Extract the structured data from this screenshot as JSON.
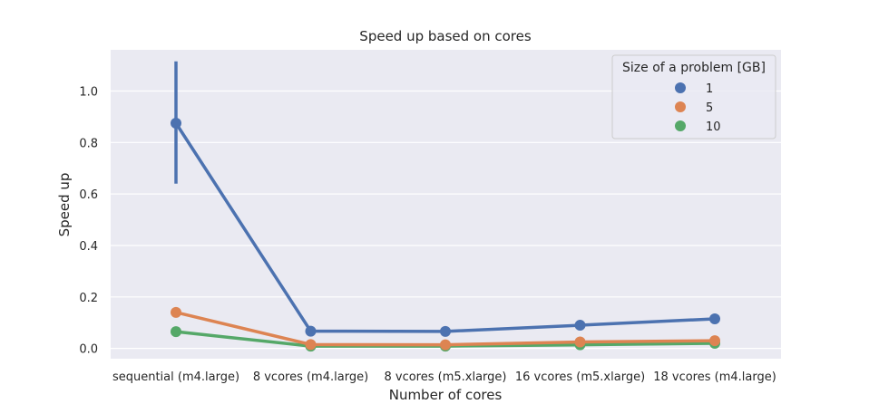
{
  "chart_data": {
    "type": "line",
    "title": "Speed up based on cores",
    "xlabel": "Number of cores",
    "ylabel": "Speed up",
    "categories": [
      "sequential (m4.large)",
      "8 vcores (m4.large)",
      "8 vcores (m5.xlarge)",
      "16 vcores (m5.xlarge)",
      "18 vcores (m4.large)"
    ],
    "ylim": [
      -0.04,
      1.16
    ],
    "yticks": [
      0.0,
      0.2,
      0.4,
      0.6,
      0.8,
      1.0
    ],
    "ytick_labels": [
      "0.0",
      "0.2",
      "0.4",
      "0.6",
      "0.8",
      "1.0"
    ],
    "grid": true,
    "legend": {
      "title": "Size of a problem [GB]",
      "placement": "top-right"
    },
    "series": [
      {
        "name": "1",
        "color": "#4c72b0",
        "values": [
          0.875,
          0.067,
          0.066,
          0.09,
          0.115
        ],
        "error_bars": [
          [
            0.64,
            1.115
          ],
          null,
          null,
          null,
          null
        ]
      },
      {
        "name": "5",
        "color": "#dd8452",
        "values": [
          0.14,
          0.015,
          0.014,
          0.025,
          0.03
        ],
        "error_bars": [
          null,
          null,
          null,
          null,
          null
        ]
      },
      {
        "name": "10",
        "color": "#55a868",
        "values": [
          0.065,
          0.009,
          0.009,
          0.014,
          0.02
        ],
        "error_bars": [
          null,
          null,
          null,
          null,
          null
        ]
      }
    ]
  }
}
